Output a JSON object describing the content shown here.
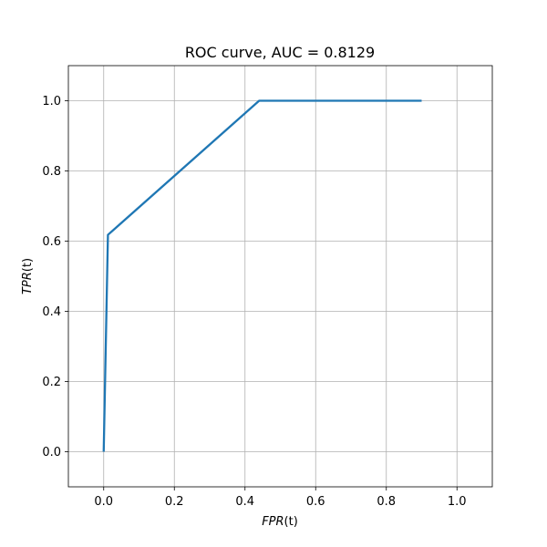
{
  "chart_data": {
    "type": "line",
    "title": "ROC curve, AUC = 0.8129",
    "xlabel": {
      "italic": "FPR",
      "plain": "(t)"
    },
    "ylabel": {
      "italic": "TPR",
      "plain": "(t)"
    },
    "xlim": [
      -0.1,
      1.1
    ],
    "ylim": [
      -0.1,
      1.1
    ],
    "xticks": [
      0.0,
      0.2,
      0.4,
      0.6,
      0.8,
      1.0
    ],
    "xtick_labels": [
      "0.0",
      "0.2",
      "0.4",
      "0.6",
      "0.8",
      "1.0"
    ],
    "yticks": [
      0.0,
      0.2,
      0.4,
      0.6,
      0.8,
      1.0
    ],
    "ytick_labels": [
      "0.0",
      "0.2",
      "0.4",
      "0.6",
      "0.8",
      "1.0"
    ],
    "grid": true,
    "series": [
      {
        "color": "#1f77b4",
        "x": [
          0.0,
          0.012,
          0.44,
          0.9
        ],
        "y": [
          0.0,
          0.618,
          1.0,
          1.0
        ]
      }
    ]
  }
}
